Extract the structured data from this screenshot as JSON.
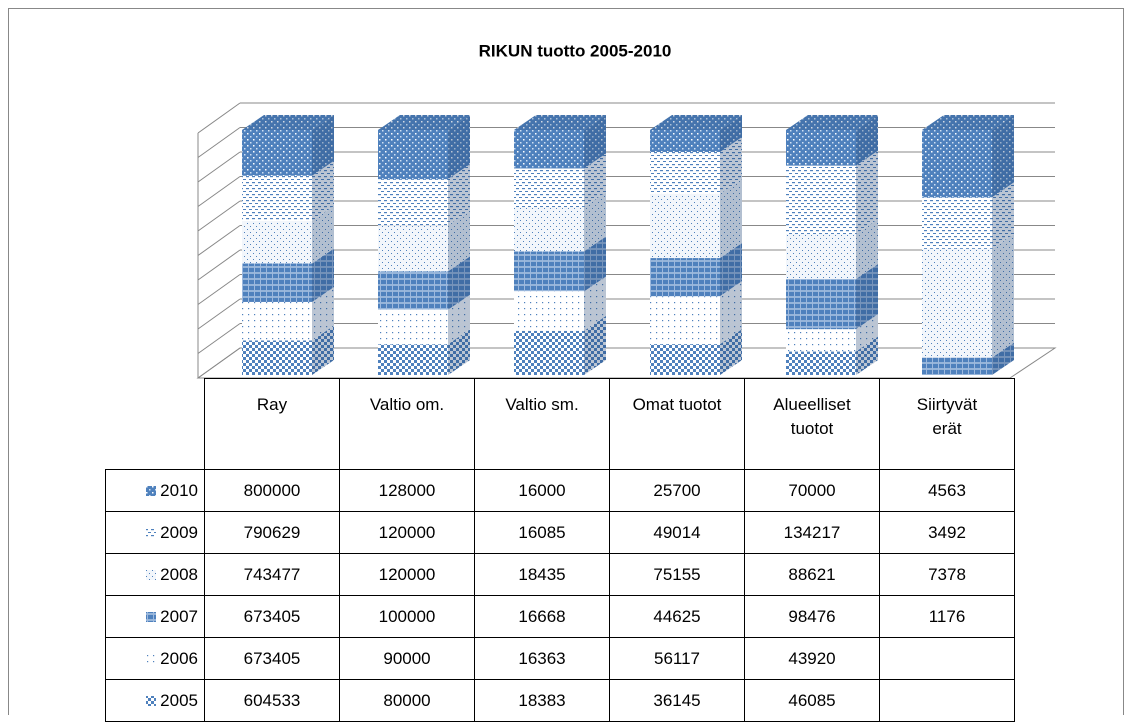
{
  "chart_data": {
    "type": "bar",
    "stacking": "percent",
    "title": "RIKUN tuotto 2005-2010",
    "categories": [
      "Ray",
      "Valtio om.",
      "Valtio sm.",
      "Omat tuotot",
      "Alueelliset tuotot",
      "Siirtyvät erät"
    ],
    "series": [
      {
        "name": "2010",
        "color": "#4f81bd",
        "values": [
          800000,
          128000,
          16000,
          25700,
          70000,
          4563
        ]
      },
      {
        "name": "2009",
        "color": "#4f81bd",
        "values": [
          790629,
          120000,
          16085,
          49014,
          134217,
          3492
        ]
      },
      {
        "name": "2008",
        "color": "#4f81bd",
        "values": [
          743477,
          120000,
          18435,
          75155,
          88621,
          7378
        ]
      },
      {
        "name": "2007",
        "color": "#4f81bd",
        "values": [
          673405,
          100000,
          16668,
          44625,
          98476,
          1176
        ]
      },
      {
        "name": "2006",
        "color": "#4f81bd",
        "values": [
          673405,
          90000,
          16363,
          56117,
          43920,
          null
        ]
      },
      {
        "name": "2005",
        "color": "#4f81bd",
        "values": [
          604533,
          80000,
          18383,
          36145,
          46085,
          null
        ]
      }
    ]
  }
}
